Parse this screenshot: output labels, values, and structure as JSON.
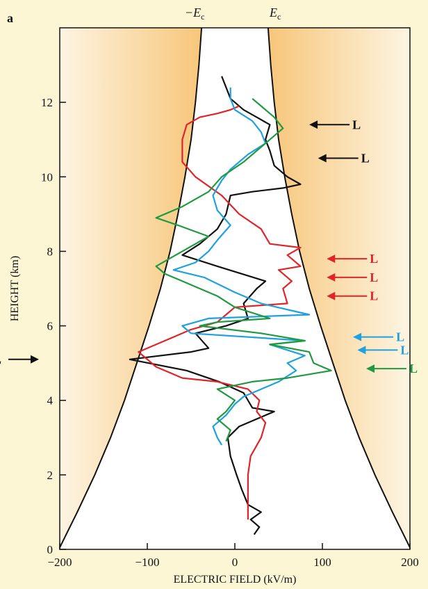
{
  "panel_label": "a",
  "chart_data": {
    "type": "line",
    "xlabel": "ELECTRIC FIELD (kV/m)",
    "ylabel": "HEIGHT (km)",
    "xlim": [
      -200,
      200
    ],
    "ylim": [
      0,
      14
    ],
    "xticks": [
      "−200",
      "−100",
      "0",
      "100",
      "200"
    ],
    "xtick_values": [
      -200,
      -100,
      0,
      100,
      200
    ],
    "yticks": [
      "0",
      "2",
      "4",
      "6",
      "8",
      "10",
      "12"
    ],
    "ytick_values": [
      0,
      2,
      4,
      6,
      8,
      10,
      12
    ],
    "grid": false,
    "threshold": {
      "neg_label": "−E",
      "pos_label": "E",
      "subscript": "c",
      "x_at_y": [
        [
          0,
          201
        ],
        [
          1,
          180
        ],
        [
          2,
          160
        ],
        [
          3,
          142
        ],
        [
          4,
          126
        ],
        [
          5,
          112
        ],
        [
          6,
          98
        ],
        [
          7,
          85
        ],
        [
          8,
          74
        ],
        [
          9,
          65
        ],
        [
          10,
          57
        ],
        [
          11,
          50
        ],
        [
          12,
          45
        ],
        [
          13,
          41
        ],
        [
          14,
          38
        ]
      ]
    },
    "series": [
      {
        "color": "#111111",
        "points": [
          [
            22,
            0.4
          ],
          [
            28,
            0.6
          ],
          [
            18,
            0.8
          ],
          [
            30,
            1.0
          ],
          [
            15,
            1.2
          ],
          [
            8,
            1.6
          ],
          [
            2,
            2.0
          ],
          [
            -5,
            2.5
          ],
          [
            -8,
            3.0
          ],
          [
            5,
            3.3
          ],
          [
            25,
            3.5
          ],
          [
            45,
            3.7
          ],
          [
            20,
            3.8
          ],
          [
            10,
            4.2
          ],
          [
            -18,
            4.5
          ],
          [
            -55,
            4.8
          ],
          [
            -120,
            5.1
          ],
          [
            -50,
            5.3
          ],
          [
            -30,
            5.4
          ],
          [
            -45,
            5.8
          ],
          [
            -10,
            6.0
          ],
          [
            15,
            6.2
          ],
          [
            10,
            6.6
          ],
          [
            25,
            7.0
          ],
          [
            35,
            7.2
          ],
          [
            -20,
            7.6
          ],
          [
            -60,
            7.9
          ],
          [
            -40,
            8.2
          ],
          [
            -20,
            8.6
          ],
          [
            -10,
            9.0
          ],
          [
            -5,
            9.5
          ],
          [
            20,
            9.6
          ],
          [
            55,
            9.7
          ],
          [
            75,
            9.8
          ],
          [
            60,
            10.0
          ],
          [
            45,
            10.3
          ],
          [
            40,
            10.7
          ],
          [
            35,
            11.0
          ],
          [
            40,
            11.4
          ],
          [
            25,
            11.6
          ],
          [
            10,
            11.8
          ],
          [
            -5,
            12.1
          ],
          [
            -10,
            12.4
          ],
          [
            -15,
            12.7
          ]
        ]
      },
      {
        "color": "#e0242a",
        "points": [
          [
            15,
            0.8
          ],
          [
            15,
            1.5
          ],
          [
            15,
            2.0
          ],
          [
            18,
            2.5
          ],
          [
            30,
            3.0
          ],
          [
            35,
            3.4
          ],
          [
            25,
            3.7
          ],
          [
            28,
            4.0
          ],
          [
            15,
            4.3
          ],
          [
            -20,
            4.5
          ],
          [
            -60,
            4.6
          ],
          [
            -90,
            4.9
          ],
          [
            -110,
            5.3
          ],
          [
            -90,
            5.5
          ],
          [
            -50,
            5.9
          ],
          [
            -20,
            6.1
          ],
          [
            -10,
            6.3
          ],
          [
            0,
            6.5
          ],
          [
            60,
            6.6
          ],
          [
            55,
            7.0
          ],
          [
            65,
            7.2
          ],
          [
            50,
            7.5
          ],
          [
            75,
            7.6
          ],
          [
            60,
            7.9
          ],
          [
            75,
            8.1
          ],
          [
            40,
            8.2
          ],
          [
            30,
            8.6
          ],
          [
            5,
            9.0
          ],
          [
            -15,
            9.5
          ],
          [
            -45,
            10.0
          ],
          [
            -60,
            10.4
          ],
          [
            -60,
            11.0
          ],
          [
            -55,
            11.4
          ],
          [
            -40,
            11.6
          ],
          [
            -20,
            11.7
          ],
          [
            -5,
            11.8
          ],
          [
            5,
            11.9
          ]
        ]
      },
      {
        "color": "#1ea1df",
        "points": [
          [
            -15,
            2.8
          ],
          [
            -20,
            3.0
          ],
          [
            -25,
            3.3
          ],
          [
            -10,
            3.6
          ],
          [
            0,
            3.9
          ],
          [
            10,
            4.1
          ],
          [
            30,
            4.3
          ],
          [
            50,
            4.5
          ],
          [
            70,
            4.8
          ],
          [
            60,
            5.0
          ],
          [
            80,
            5.2
          ],
          [
            40,
            5.5
          ],
          [
            80,
            5.6
          ],
          [
            -50,
            5.8
          ],
          [
            -60,
            6.0
          ],
          [
            -30,
            6.2
          ],
          [
            85,
            6.3
          ],
          [
            30,
            6.6
          ],
          [
            0,
            6.9
          ],
          [
            -35,
            7.3
          ],
          [
            -70,
            7.5
          ],
          [
            -45,
            7.7
          ],
          [
            -30,
            8.0
          ],
          [
            -20,
            8.3
          ],
          [
            -5,
            8.7
          ],
          [
            -20,
            9.1
          ],
          [
            -25,
            9.5
          ],
          [
            -15,
            9.9
          ],
          [
            -5,
            10.2
          ],
          [
            15,
            10.6
          ],
          [
            35,
            10.9
          ],
          [
            30,
            11.2
          ],
          [
            20,
            11.5
          ],
          [
            0,
            11.8
          ],
          [
            -5,
            12.1
          ],
          [
            -5,
            12.4
          ]
        ]
      },
      {
        "color": "#1f9a40",
        "points": [
          [
            -10,
            2.9
          ],
          [
            -5,
            3.2
          ],
          [
            -20,
            3.5
          ],
          [
            -10,
            3.7
          ],
          [
            0,
            4.0
          ],
          [
            -20,
            4.3
          ],
          [
            20,
            4.5
          ],
          [
            60,
            4.6
          ],
          [
            110,
            4.8
          ],
          [
            90,
            5.0
          ],
          [
            85,
            5.3
          ],
          [
            40,
            5.5
          ],
          [
            80,
            5.6
          ],
          [
            30,
            5.8
          ],
          [
            -40,
            6.0
          ],
          [
            -20,
            6.1
          ],
          [
            40,
            6.2
          ],
          [
            0,
            6.5
          ],
          [
            -20,
            6.8
          ],
          [
            -50,
            7.1
          ],
          [
            -80,
            7.4
          ],
          [
            -90,
            7.6
          ],
          [
            -60,
            8.0
          ],
          [
            -30,
            8.4
          ],
          [
            -65,
            8.7
          ],
          [
            -90,
            8.9
          ],
          [
            -60,
            9.2
          ],
          [
            -30,
            9.6
          ],
          [
            -15,
            10.0
          ],
          [
            10,
            10.4
          ],
          [
            25,
            10.7
          ],
          [
            40,
            11.0
          ],
          [
            55,
            11.3
          ],
          [
            45,
            11.6
          ],
          [
            30,
            11.9
          ],
          [
            20,
            12.1
          ]
        ]
      }
    ],
    "annotations": [
      {
        "text": "L",
        "x": 85,
        "y": 11.4,
        "direction": "left",
        "color": "#111111"
      },
      {
        "text": "L",
        "x": 95,
        "y": 10.5,
        "direction": "left",
        "color": "#111111"
      },
      {
        "text": "L",
        "x": 105,
        "y": 7.8,
        "direction": "left",
        "color": "#e0242a"
      },
      {
        "text": "L",
        "x": 105,
        "y": 7.3,
        "direction": "left",
        "color": "#e0242a"
      },
      {
        "text": "L",
        "x": 105,
        "y": 6.8,
        "direction": "left",
        "color": "#e0242a"
      },
      {
        "text": "L",
        "x": 135,
        "y": 5.7,
        "direction": "left",
        "color": "#1ea1df"
      },
      {
        "text": "L",
        "x": 140,
        "y": 5.35,
        "direction": "left",
        "color": "#1ea1df"
      },
      {
        "text": "L",
        "x": 150,
        "y": 4.85,
        "direction": "left",
        "color": "#1f9a40"
      },
      {
        "text": "L",
        "x": -200,
        "y": 5.1,
        "direction": "right",
        "color": "#111111"
      }
    ]
  }
}
